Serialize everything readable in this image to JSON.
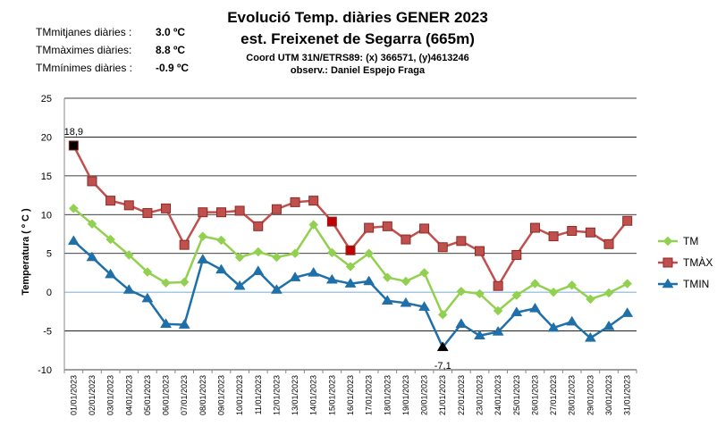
{
  "header": {
    "stats": [
      {
        "label": "TMmitjanes diàries :",
        "value": "3.0 ºC"
      },
      {
        "label": "TMmàximes diàries:",
        "value": "8.8 ºC"
      },
      {
        "label": "TMmínimes diàries :",
        "value": "-0.9 ºC"
      }
    ],
    "title_line1": "Evolució Temp. diàries GENER 2023",
    "title_line2": "est. Freixenet de Segarra (665m)",
    "coord_line": "Coord UTM 31N/ETRS89: (x) 366571, (y)4613246",
    "observer_line": "observ.: Daniel Espejo Fraga"
  },
  "chart_data": {
    "type": "line",
    "ylabel": "Temperatura ( º C )",
    "ylim": [
      -10,
      25
    ],
    "yticks": [
      -10,
      -5,
      0,
      5,
      10,
      15,
      20,
      25
    ],
    "grid": "horizontal",
    "legend_position": "right",
    "categories": [
      "01/01/2023",
      "02/01/2023",
      "03/01/2023",
      "04/01/2023",
      "05/01/2023",
      "06/01/2023",
      "07/01/2023",
      "08/01/2023",
      "09/01/2023",
      "10/01/2023",
      "11/01/2023",
      "12/01/2023",
      "13/01/2023",
      "14/01/2023",
      "15/01/2023",
      "16/01/2023",
      "17/01/2023",
      "18/01/2023",
      "19/01/2023",
      "20/01/2023",
      "21/01/2023",
      "22/01/2023",
      "23/01/2023",
      "24/01/2023",
      "25/01/2023",
      "26/01/2023",
      "27/01/2023",
      "28/01/2023",
      "29/01/2023",
      "30/01/2023",
      "31/01/2023"
    ],
    "series": [
      {
        "name": "TM",
        "color": "#92d050",
        "marker": "diamond",
        "values": [
          10.8,
          8.8,
          6.8,
          4.8,
          2.6,
          1.2,
          1.3,
          7.2,
          6.7,
          4.5,
          5.2,
          4.5,
          5.0,
          8.7,
          5.1,
          3.3,
          5.0,
          1.9,
          1.4,
          2.5,
          -2.9,
          0.1,
          -0.2,
          -2.4,
          -0.4,
          1.1,
          0.0,
          0.9,
          -0.9,
          -0.1,
          1.1
        ]
      },
      {
        "name": "TMÀX",
        "color": "#c0504d",
        "marker": "square",
        "values": [
          18.9,
          14.3,
          11.8,
          11.2,
          10.2,
          10.8,
          6.1,
          10.3,
          10.3,
          10.5,
          8.5,
          10.7,
          11.6,
          11.8,
          9.1,
          5.4,
          8.3,
          8.5,
          6.8,
          8.2,
          5.8,
          6.6,
          5.3,
          0.8,
          4.8,
          8.3,
          7.2,
          7.9,
          7.7,
          6.2,
          9.2
        ]
      },
      {
        "name": "TMIN",
        "color": "#1f6fa8",
        "marker": "triangle",
        "values": [
          6.6,
          4.5,
          2.3,
          0.3,
          -0.8,
          -4.1,
          -4.2,
          4.2,
          2.9,
          0.8,
          2.7,
          0.3,
          1.9,
          2.5,
          1.6,
          1.1,
          1.4,
          -1.1,
          -1.4,
          -1.9,
          -7.1,
          -4.1,
          -5.6,
          -5.1,
          -2.6,
          -2.1,
          -4.6,
          -3.8,
          -5.9,
          -4.4,
          -2.7
        ]
      }
    ],
    "highlights": [
      {
        "series": "TMÀX",
        "index": 0,
        "color": "#000000"
      },
      {
        "series": "TMÀX",
        "index": 14,
        "color": "#c00000"
      },
      {
        "series": "TMÀX",
        "index": 15,
        "color": "#c00000"
      },
      {
        "series": "TMIN",
        "index": 20,
        "color": "#000000"
      }
    ],
    "annotations": [
      {
        "text": "18,9",
        "series": "TMÀX",
        "index": 0,
        "position": "above"
      },
      {
        "text": "-7,1",
        "series": "TMIN",
        "index": 20,
        "position": "below"
      }
    ]
  }
}
